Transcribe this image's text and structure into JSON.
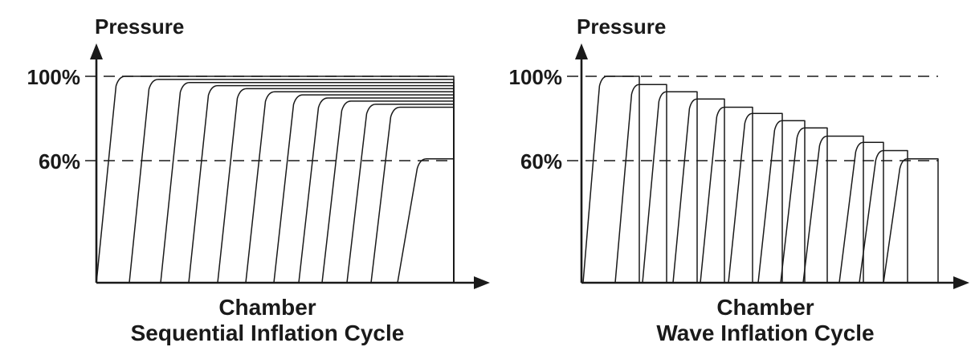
{
  "chart_data": [
    {
      "type": "line",
      "title": "Sequential Inflation Cycle",
      "xlabel": "Chamber",
      "ylabel": "Pressure",
      "y_ticks": [
        "100%",
        "60%"
      ],
      "reference_lines": [
        100,
        60
      ],
      "ylim": [
        0,
        110
      ],
      "grid": false,
      "pattern": "each successive chamber inflates to a lower plateau and every chamber stays inflated until the end of the cycle",
      "series": [
        {
          "chamber": 1,
          "plateau": 100
        },
        {
          "chamber": 2,
          "plateau": 98.5
        },
        {
          "chamber": 3,
          "plateau": 97
        },
        {
          "chamber": 4,
          "plateau": 95.5
        },
        {
          "chamber": 5,
          "plateau": 94
        },
        {
          "chamber": 6,
          "plateau": 92.5
        },
        {
          "chamber": 7,
          "plateau": 91
        },
        {
          "chamber": 8,
          "plateau": 89.5
        },
        {
          "chamber": 9,
          "plateau": 88
        },
        {
          "chamber": 10,
          "plateau": 86.5
        },
        {
          "chamber": 11,
          "plateau": 85
        },
        {
          "chamber": 12,
          "plateau": 60
        }
      ]
    },
    {
      "type": "line",
      "title": "Wave Inflation Cycle",
      "xlabel": "Chamber",
      "ylabel": "Pressure",
      "y_ticks": [
        "100%",
        "60%"
      ],
      "reference_lines": [
        100,
        60
      ],
      "ylim": [
        0,
        110
      ],
      "grid": false,
      "pattern": "each chamber inflates to a slightly lower plateau and deflates as the next chamber peaks",
      "series": [
        {
          "chamber": 1,
          "plateau": 100
        },
        {
          "chamber": 2,
          "plateau": 96
        },
        {
          "chamber": 3,
          "plateau": 92.5
        },
        {
          "chamber": 4,
          "plateau": 89
        },
        {
          "chamber": 5,
          "plateau": 85
        },
        {
          "chamber": 6,
          "plateau": 82
        },
        {
          "chamber": 7,
          "plateau": 78.5
        },
        {
          "chamber": 8,
          "plateau": 75
        },
        {
          "chamber": 9,
          "plateau": 71
        },
        {
          "chamber": 10,
          "plateau": 68
        },
        {
          "chamber": 11,
          "plateau": 64
        },
        {
          "chamber": 12,
          "plateau": 60
        }
      ]
    }
  ]
}
